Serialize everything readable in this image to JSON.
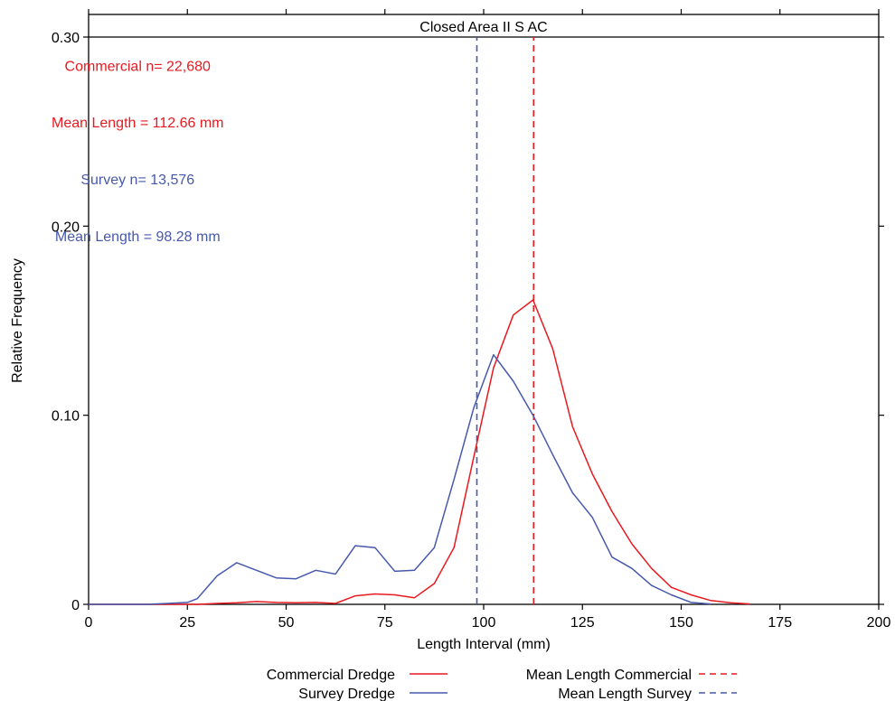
{
  "chart_data": {
    "type": "line",
    "title": "Closed Area II S AC",
    "xlabel": "Length Interval (mm)",
    "ylabel": "Relative Frequency",
    "xlim": [
      0,
      200
    ],
    "ylim": [
      0,
      0.3
    ],
    "xticks": [
      0,
      25,
      50,
      75,
      100,
      125,
      150,
      175,
      200
    ],
    "xtick_labels": [
      "0",
      "25",
      "50",
      "75",
      "100",
      "125",
      "150",
      "175",
      "200"
    ],
    "yticks": [
      0,
      0.1,
      0.2,
      0.3
    ],
    "ytick_labels": [
      "0",
      "0.10",
      "0.20",
      "0.30"
    ],
    "grid": false,
    "legend_position": "bottom",
    "series": [
      {
        "name": "Commercial Dredge",
        "color": "#e8191f",
        "style": "solid",
        "x": [
          0,
          5,
          10,
          15,
          20,
          25,
          27.5,
          32.5,
          37.5,
          42.5,
          47.5,
          52.5,
          57.5,
          62.5,
          67.5,
          72.5,
          77.5,
          82.5,
          87.5,
          92.5,
          97.5,
          102.5,
          107.5,
          112.5,
          117.5,
          122.5,
          127.5,
          132.5,
          137.5,
          142.5,
          147.5,
          152.5,
          157.5,
          162.5,
          167.5
        ],
        "y": [
          0,
          0,
          0,
          0,
          0,
          0,
          0,
          0.0005,
          0.0008,
          0.0015,
          0.001,
          0.0008,
          0.001,
          0.0005,
          0.0045,
          0.0055,
          0.005,
          0.0035,
          0.011,
          0.03,
          0.078,
          0.125,
          0.153,
          0.161,
          0.135,
          0.094,
          0.069,
          0.049,
          0.032,
          0.019,
          0.009,
          0.005,
          0.002,
          0.0008,
          0.0002
        ]
      },
      {
        "name": "Survey Dredge",
        "color": "#4659ad",
        "style": "solid",
        "x": [
          0,
          5,
          10,
          15,
          20,
          25,
          27.5,
          32.5,
          37.5,
          42.5,
          47.5,
          52.5,
          57.5,
          62.5,
          67.5,
          72.5,
          77.5,
          82.5,
          87.5,
          92.5,
          97.5,
          102.5,
          107.5,
          112.5,
          117.5,
          122.5,
          127.5,
          132.5,
          137.5,
          142.5,
          147.5,
          152.5,
          157.5
        ],
        "y": [
          0,
          0,
          0,
          0,
          0.0005,
          0.001,
          0.003,
          0.015,
          0.022,
          0.018,
          0.014,
          0.0135,
          0.018,
          0.016,
          0.031,
          0.03,
          0.0175,
          0.018,
          0.03,
          0.066,
          0.104,
          0.132,
          0.118,
          0.1,
          0.079,
          0.059,
          0.046,
          0.025,
          0.019,
          0.01,
          0.005,
          0.001,
          0.0002
        ]
      },
      {
        "name": "Mean Length Commercial",
        "color": "#e8191f",
        "style": "dashed",
        "x": [
          112.66,
          112.66
        ],
        "y": [
          0,
          0.3
        ]
      },
      {
        "name": "Mean Length Survey",
        "color": "#4659ad",
        "style": "dashed",
        "x": [
          98.28,
          98.28
        ],
        "y": [
          0,
          0.3
        ]
      }
    ],
    "annotations": [
      {
        "text": "Commercial n= 22,680",
        "color": "#e8191f",
        "at": [
          25,
          0.285
        ]
      },
      {
        "text": "Mean Length = 112.66 mm",
        "color": "#e8191f",
        "at": [
          25,
          0.255
        ]
      },
      {
        "text": "Survey n= 13,576",
        "color": "#4659ad",
        "at": [
          25,
          0.225
        ]
      },
      {
        "text": "Mean Length = 98.28 mm",
        "color": "#4659ad",
        "at": [
          25,
          0.195
        ]
      }
    ]
  }
}
